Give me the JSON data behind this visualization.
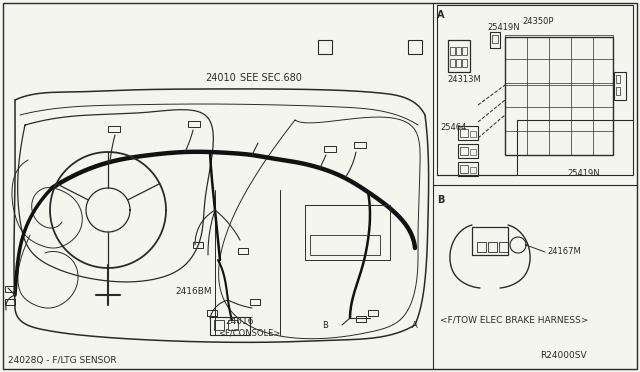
{
  "bg_color": "#f5f5f0",
  "line_color": "#2a2a2a",
  "text_color": "#2a2a2a",
  "diagram_labels": {
    "main_part": "24010",
    "see_sec": "SEE SEC.680",
    "label_2416BM": "2416BM",
    "label_24016": "24016",
    "label_24016b": "<F/CONSOLE>",
    "label_24028Q": "24028Q - F/LTG SENSOR",
    "ref_code": "R24000SV",
    "label_A": "A",
    "label_B": "B",
    "label_A2": "A",
    "label_B2": "B",
    "fbox_label": "<F/TOW ELEC BRAKE HARNESS>",
    "label_24313M": "24313M",
    "label_25419N_top": "25419N",
    "label_24350P": "24350P",
    "label_25464": "25464",
    "label_25419N_bot": "25419N",
    "label_24167M": "24167M"
  },
  "figsize": [
    6.4,
    3.72
  ],
  "dpi": 100
}
